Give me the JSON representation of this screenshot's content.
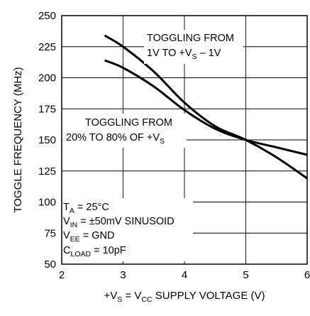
{
  "chart_data": {
    "type": "line",
    "xlabel": {
      "prefix": "+V",
      "sub1": "S",
      "mid": " = V",
      "sub2": "CC",
      "suffix": " SUPPLY VOLTAGE (V)"
    },
    "ylabel": "TOGGLE FREQUENCY (MHz)",
    "xlim": [
      2,
      6
    ],
    "ylim": [
      50,
      250
    ],
    "xticks": [
      "2",
      "3",
      "4",
      "5",
      "6"
    ],
    "yticks": [
      "50",
      "75",
      "100",
      "125",
      "150",
      "175",
      "200",
      "225",
      "250"
    ],
    "grid": true,
    "series": [
      {
        "name": "TOGGLING FROM 1V TO +VS – 1V",
        "x": [
          2.7,
          3.0,
          3.5,
          4.0,
          4.5,
          5.0,
          5.5,
          6.0
        ],
        "y": [
          234,
          225,
          205,
          180,
          161,
          150,
          136,
          119
        ]
      },
      {
        "name": "TOGGLING FROM 20% TO 80% OF +VS",
        "x": [
          2.7,
          3.0,
          3.5,
          4.0,
          4.5,
          5.0,
          5.5,
          6.0
        ],
        "y": [
          214,
          208,
          193,
          174,
          159,
          150,
          144,
          138
        ]
      }
    ],
    "annotations": {
      "upper": {
        "line1": "TOGGLING FROM",
        "line2_prefix": "1V TO +V",
        "line2_sub": "S",
        "line2_suffix": " – 1V"
      },
      "lower": {
        "line1": "TOGGLING FROM",
        "line2_prefix": "20% TO 80% OF +V",
        "line2_sub": "S"
      }
    },
    "conditions": [
      {
        "pre": "T",
        "sub": "A",
        "post": " = 25°C"
      },
      {
        "pre": "V",
        "sub": "IN",
        "post": " = ±50mV SINUSOID"
      },
      {
        "pre": "V",
        "sub": "EE",
        "post": " = GND"
      },
      {
        "pre": "C",
        "sub": "LOAD",
        "post": " = 10pF"
      }
    ]
  }
}
